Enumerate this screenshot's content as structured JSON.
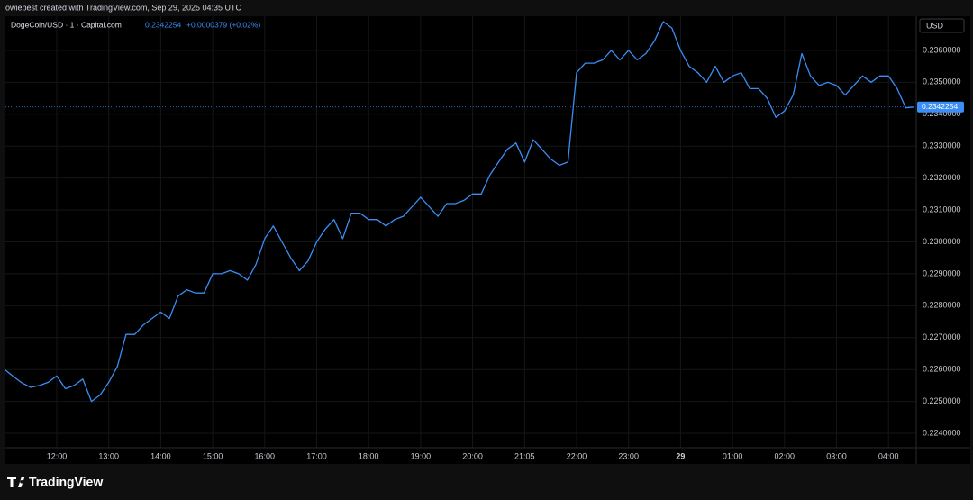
{
  "header": {
    "attribution": "owiebest created with TradingView.com, Sep 29, 2025 04:35 UTC",
    "change": "+0.0000379 (+0.02%)",
    "currency": "USD",
    "brand": "TradingView"
  },
  "chart_data": {
    "type": "line",
    "categories": [
      null,
      null,
      null,
      null,
      null,
      null,
      "12:00",
      null,
      null,
      null,
      null,
      null,
      "13:00",
      null,
      null,
      null,
      null,
      null,
      "14:00",
      null,
      null,
      null,
      null,
      null,
      "15:00",
      null,
      null,
      null,
      null,
      null,
      "16:00",
      null,
      null,
      null,
      null,
      null,
      "17:00",
      null,
      null,
      null,
      null,
      null,
      "18:00",
      null,
      null,
      null,
      null,
      null,
      "19:00",
      null,
      null,
      null,
      null,
      null,
      "20:00",
      null,
      null,
      null,
      null,
      null,
      "21:05",
      null,
      null,
      null,
      null,
      null,
      "22:00",
      null,
      null,
      null,
      null,
      null,
      "23:00",
      null,
      null,
      null,
      null,
      null,
      "29",
      null,
      null,
      null,
      null,
      null,
      "01:00",
      null,
      null,
      null,
      null,
      null,
      "02:00",
      null,
      null,
      null,
      null,
      null,
      "03:00",
      null,
      null,
      null,
      null,
      null,
      "04:00",
      null,
      null,
      null
    ],
    "series": [
      {
        "name": "DogeCoin/USD · 1 · Capital.com",
        "color": "#3a8ef6",
        "values": [
          0.226,
          0.22578,
          0.22558,
          0.22544,
          0.2255,
          0.2256,
          0.2258,
          0.2254,
          0.2255,
          0.2257,
          0.225,
          0.2252,
          0.2256,
          0.2261,
          0.2271,
          0.2271,
          0.2274,
          0.2276,
          0.2278,
          0.2276,
          0.2283,
          0.2285,
          0.2284,
          0.2284,
          0.229,
          0.229,
          0.2291,
          0.229,
          0.2288,
          0.2293,
          0.2301,
          0.2305,
          0.23,
          0.2295,
          0.2291,
          0.2294,
          0.23,
          0.2304,
          0.2307,
          0.2301,
          0.2309,
          0.2309,
          0.2307,
          0.2307,
          0.2305,
          0.2307,
          0.2308,
          0.2311,
          0.2314,
          0.2311,
          0.2308,
          0.2312,
          0.2312,
          0.2313,
          0.2315,
          0.2315,
          0.2321,
          0.2325,
          0.2329,
          0.2331,
          0.2325,
          0.2332,
          0.2329,
          0.2326,
          0.2324,
          0.2325,
          0.2353,
          0.2356,
          0.2356,
          0.2357,
          0.236,
          0.2357,
          0.236,
          0.2357,
          0.2359,
          0.2363,
          0.2369,
          0.2367,
          0.236,
          0.2355,
          0.2353,
          0.235,
          0.2355,
          0.235,
          0.2352,
          0.2353,
          0.2348,
          0.2348,
          0.2345,
          0.2339,
          0.2341,
          0.2346,
          0.2359,
          0.2352,
          0.2349,
          0.235,
          0.2349,
          0.2346,
          0.2349,
          0.2352,
          0.235,
          0.2352,
          0.2352,
          0.2348,
          0.2342,
          0.2342254
        ]
      }
    ],
    "ylim": [
      0.22355,
      0.23707
    ],
    "yticks": [
      {
        "value": 0.224,
        "label": "0.2240000"
      },
      {
        "value": 0.225,
        "label": "0.2250000"
      },
      {
        "value": 0.226,
        "label": "0.2260000"
      },
      {
        "value": 0.227,
        "label": "0.2270000"
      },
      {
        "value": 0.228,
        "label": "0.2280000"
      },
      {
        "value": 0.229,
        "label": "0.2290000"
      },
      {
        "value": 0.23,
        "label": "0.2300000"
      },
      {
        "value": 0.231,
        "label": "0.2310000"
      },
      {
        "value": 0.232,
        "label": "0.2320000"
      },
      {
        "value": 0.233,
        "label": "0.2330000"
      },
      {
        "value": 0.234,
        "label": "0.2340000"
      },
      {
        "value": 0.235,
        "label": "0.2350000"
      },
      {
        "value": 0.236,
        "label": "0.2360000"
      }
    ],
    "grid": true
  }
}
